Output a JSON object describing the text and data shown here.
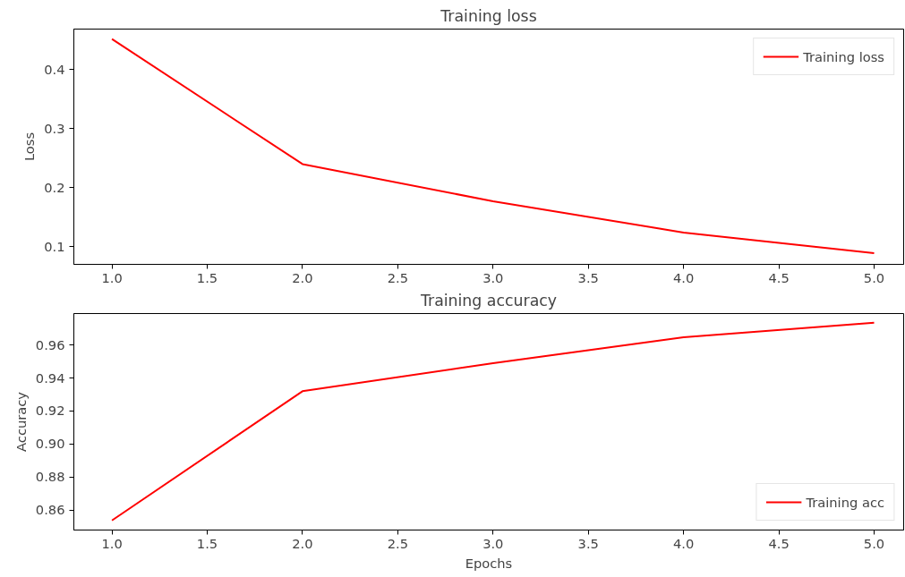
{
  "chart_data": [
    {
      "type": "line",
      "title": "Training loss",
      "ylabel": "Loss",
      "x": [
        1,
        2,
        3,
        4,
        5
      ],
      "series": [
        {
          "name": "Training loss",
          "color": "#ff0000",
          "values": [
            0.452,
            0.24,
            0.177,
            0.124,
            0.089
          ]
        }
      ],
      "xlim": [
        0.8,
        5.155
      ],
      "ylim": [
        0.07,
        0.469
      ],
      "xticks": [
        {
          "value": 1,
          "label": "1.0"
        },
        1.5,
        {
          "value": 2,
          "label": "2.0"
        },
        2.5,
        {
          "value": 3,
          "label": "3.0"
        },
        3.5,
        {
          "value": 4,
          "label": "4.0"
        },
        4.5,
        {
          "value": 5,
          "label": "5.0"
        }
      ],
      "yticks": [
        0.1,
        0.2,
        0.3,
        0.4
      ],
      "grid": false,
      "legend": "top right"
    },
    {
      "type": "line",
      "title": "Training accuracy",
      "xlabel": "Epochs",
      "ylabel": "Accuracy",
      "x": [
        1,
        2,
        3,
        4,
        5
      ],
      "series": [
        {
          "name": "Training acc",
          "color": "#ff0000",
          "values": [
            0.8538,
            0.932,
            0.949,
            0.9647,
            0.9735
          ]
        }
      ],
      "xlim": [
        0.8,
        5.155
      ],
      "ylim": [
        0.848,
        0.979
      ],
      "xticks": [
        {
          "value": 1,
          "label": "1.0"
        },
        1.5,
        {
          "value": 2,
          "label": "2.0"
        },
        2.5,
        {
          "value": 3,
          "label": "3.0"
        },
        3.5,
        {
          "value": 4,
          "label": "4.0"
        },
        4.5,
        {
          "value": 5,
          "label": "5.0"
        }
      ],
      "yticks": [
        {
          "value": 0.86,
          "label": "0.86"
        },
        {
          "value": 0.88,
          "label": "0.88"
        },
        {
          "value": 0.9,
          "label": "0.90"
        },
        {
          "value": 0.92,
          "label": "0.92"
        },
        {
          "value": 0.94,
          "label": "0.94"
        },
        {
          "value": 0.96,
          "label": "0.96"
        }
      ],
      "grid": false,
      "legend": "bottom right"
    }
  ]
}
